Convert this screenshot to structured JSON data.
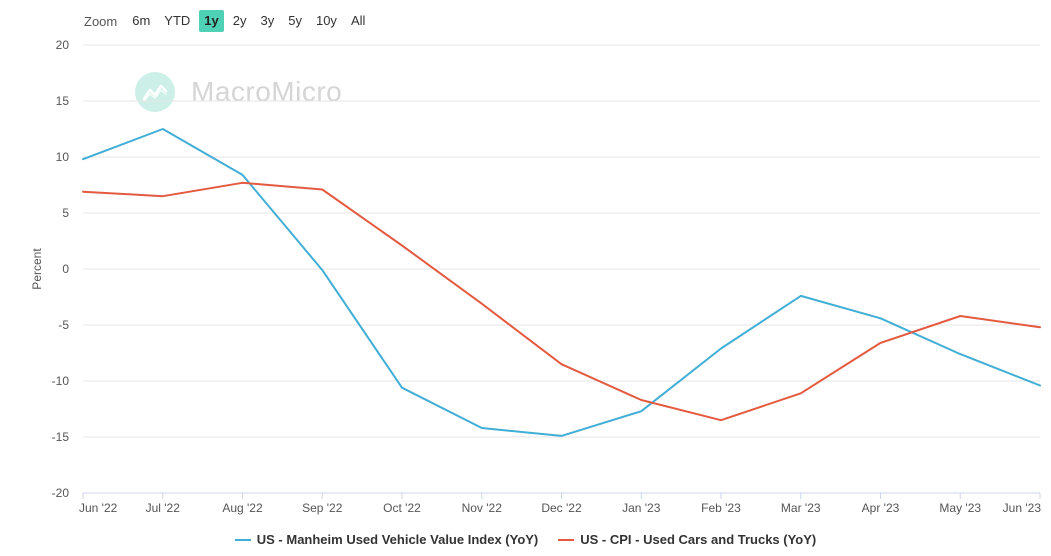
{
  "zoom": {
    "label": "Zoom",
    "buttons": [
      "6m",
      "YTD",
      "1y",
      "2y",
      "3y",
      "5y",
      "10y",
      "All"
    ],
    "active": "1y"
  },
  "watermark": {
    "text": "MacroMicro"
  },
  "chart_data": {
    "type": "line",
    "ylabel": "Percent",
    "ylim": [
      -20,
      20
    ],
    "yticks": [
      20,
      15,
      10,
      5,
      0,
      -5,
      -10,
      -15,
      -20
    ],
    "categories": [
      "Jun '22",
      "Jul '22",
      "Aug '22",
      "Sep '22",
      "Oct '22",
      "Nov '22",
      "Dec '22",
      "Jan '23",
      "Feb '23",
      "Mar '23",
      "Apr '23",
      "May '23",
      "Jun '23"
    ],
    "grid": true,
    "legend_position": "bottom",
    "series": [
      {
        "name": "US - Manheim Used Vehicle Value Index (YoY)",
        "color": "#41aed6",
        "values": [
          9.8,
          12.5,
          8.4,
          -0.1,
          -10.6,
          -14.2,
          -14.9,
          -12.7,
          -7.1,
          -2.4,
          -4.4,
          -7.6,
          -10.4
        ]
      },
      {
        "name": "US - CPI - Used Cars and Trucks (YoY)",
        "color": "#e35a40",
        "values": [
          6.9,
          6.5,
          7.7,
          7.1,
          2.1,
          -3.1,
          -8.5,
          -11.7,
          -13.5,
          -11.1,
          -6.6,
          -4.2,
          -5.2
        ]
      }
    ]
  }
}
